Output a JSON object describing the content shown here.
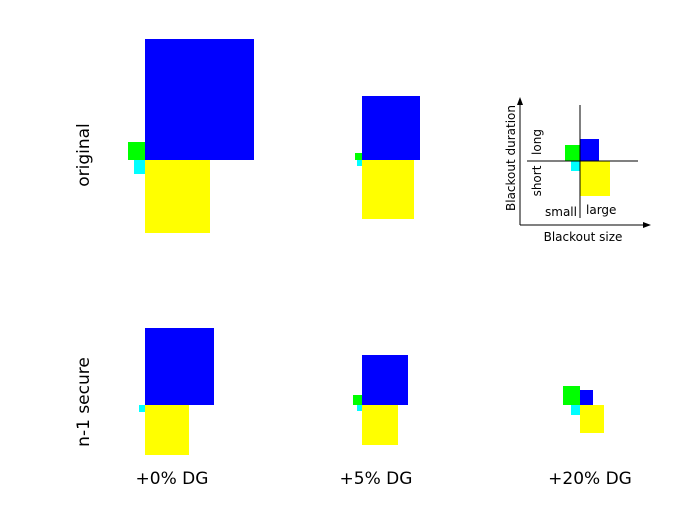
{
  "rows": [
    {
      "label": "original"
    },
    {
      "label": "n-1 secure"
    }
  ],
  "columns": [
    {
      "label": "+0% DG"
    },
    {
      "label": "+5% DG"
    },
    {
      "label": "+20% DG"
    }
  ],
  "legend": {
    "x_axis_label": "Blackout size",
    "y_axis_label": "Blackout duration",
    "small": "small",
    "large": "large",
    "short": "short",
    "long": "long"
  },
  "colors": {
    "small_long": "#00ff00",
    "large_long": "#0000ff",
    "small_short": "#00ffff",
    "large_short": "#ffff00"
  }
}
